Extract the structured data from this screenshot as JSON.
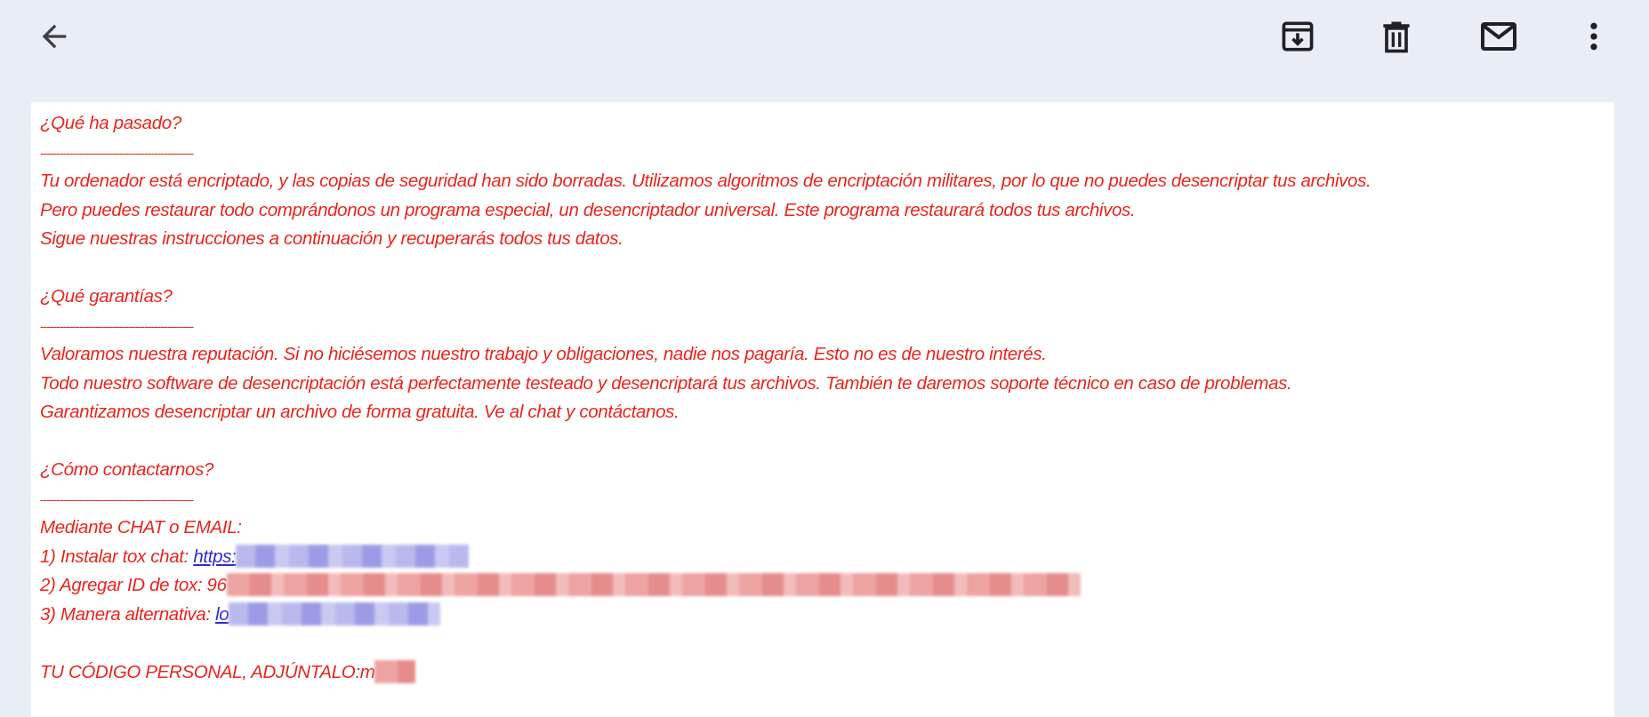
{
  "toolbar": {
    "icons": [
      "arrow-back-icon",
      "archive-icon",
      "trash-icon",
      "mail-icon",
      "more-vert-icon"
    ]
  },
  "colors": {
    "text": "#e8261e",
    "link": "#2b2bcf",
    "header_bg": "#e9edf5"
  },
  "message": {
    "section1": {
      "heading": "¿Qué ha pasado?",
      "divider": "-----------------------------------------------",
      "lines": [
        "Tu ordenador está encriptado, y las copias de seguridad han sido borradas. Utilizamos algoritmos de encriptación militares, por lo que no puedes desencriptar tus archivos.",
        "Pero puedes restaurar todo comprándonos un programa especial, un desencriptador universal. Este programa restaurará todos tus archivos.",
        "Sigue nuestras instrucciones a continuación y recuperarás todos tus datos."
      ]
    },
    "section2": {
      "heading": "¿Qué garantías?",
      "divider": "-----------------------------------------------",
      "lines": [
        "Valoramos nuestra reputación. Si no hiciésemos nuestro trabajo y obligaciones, nadie nos pagaría. Esto no es de nuestro interés.",
        "Todo nuestro software de desencriptación está perfectamente testeado y desencriptará tus archivos. También te daremos soporte técnico en caso de problemas.",
        "Garantizamos desencriptar un archivo de forma gratuita. Ve al chat y contáctanos."
      ]
    },
    "section3": {
      "heading": "¿Cómo contactarnos?",
      "divider": "-----------------------------------------------",
      "intro": "Mediante CHAT o EMAIL:",
      "step1_label": "1) Instalar tox chat: ",
      "step1_link": "https:",
      "step2_label": "2) Agregar ID de tox: 96",
      "step3_label": "3) Manera alternativa: ",
      "step3_link": "lo",
      "code_label": "TU CÓDIGO PERSONAL, ADJÚNTALO:m"
    }
  }
}
